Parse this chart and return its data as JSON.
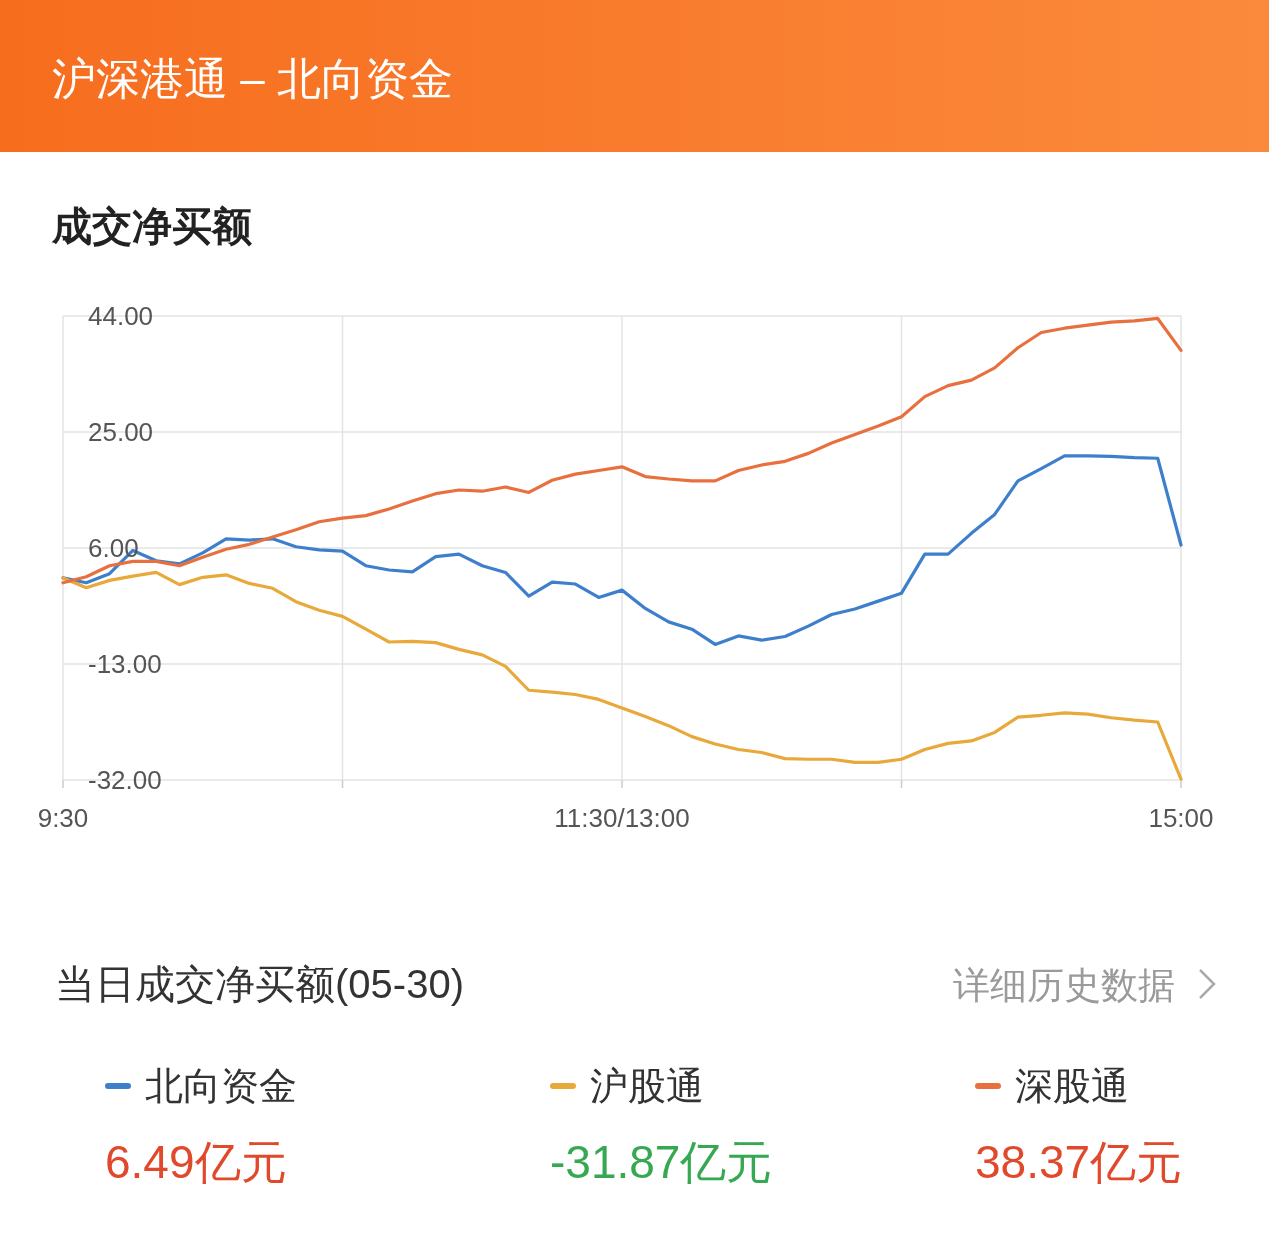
{
  "chart_data": {
    "type": "line",
    "title": "沪深港通 – 北向资金",
    "subtitle": "成交净买额",
    "categories": [
      "9:30",
      null,
      null,
      null,
      null,
      null,
      null,
      null,
      null,
      null,
      null,
      null,
      null,
      null,
      null,
      null,
      null,
      null,
      null,
      null,
      null,
      null,
      null,
      null,
      "11:30/13:00",
      null,
      null,
      null,
      null,
      null,
      null,
      null,
      null,
      null,
      null,
      null,
      null,
      null,
      null,
      null,
      null,
      null,
      null,
      null,
      null,
      null,
      null,
      null,
      "15:00"
    ],
    "ylim": [
      -32,
      44
    ],
    "yticks": [
      {
        "value": -32,
        "label": "-32.00"
      },
      {
        "value": -13,
        "label": "-13.00"
      },
      {
        "value": 6,
        "label": "6.00"
      },
      {
        "value": 25,
        "label": "25.00"
      },
      {
        "value": 44,
        "label": "44.00"
      }
    ],
    "grid": true,
    "legend": "bottom",
    "annotations": [
      "当日成交净买额(05-30)",
      "详细历史数据",
      "6.49亿元",
      "-31.87亿元",
      "38.37亿元"
    ],
    "series": [
      {
        "name": "北向资金",
        "color": "#3e7fcc",
        "values": [
          1.1,
          0.3,
          1.8,
          5.6,
          3.9,
          3.4,
          5.2,
          7.5,
          7.3,
          7.5,
          6.2,
          5.7,
          5.5,
          3.1,
          2.4,
          2.1,
          4.6,
          5.0,
          3.1,
          2.0,
          -1.9,
          0.4,
          0.1,
          -2.1,
          -0.9,
          -3.9,
          -6.1,
          -7.3,
          -9.8,
          -8.4,
          -9.1,
          -8.5,
          -6.8,
          -4.9,
          -4.0,
          -2.7,
          -1.4,
          5.0,
          5.0,
          8.4,
          11.5,
          17.0,
          19.0,
          21.1,
          21.1,
          21.0,
          20.8,
          20.7,
          6.49
        ]
      },
      {
        "name": "沪股通",
        "color": "#e8a93a",
        "values": [
          1.1,
          -0.5,
          0.7,
          1.4,
          2.0,
          0,
          1.2,
          1.6,
          0.2,
          -0.6,
          -2.8,
          -4.2,
          -5.2,
          -7.3,
          -9.4,
          -9.3,
          -9.5,
          -10.6,
          -11.5,
          -13.4,
          -17.3,
          -17.6,
          -18.0,
          -18.8,
          -20.2,
          -21.6,
          -23.1,
          -24.9,
          -26.1,
          -27.0,
          -27.5,
          -28.5,
          -28.6,
          -28.6,
          -29.1,
          -29.1,
          -28.6,
          -27.0,
          -26.0,
          -25.6,
          -24.2,
          -21.7,
          -21.4,
          -21.0,
          -21.2,
          -21.8,
          -22.2,
          -22.5,
          -31.87
        ]
      },
      {
        "name": "深股通",
        "color": "#e8703f",
        "values": [
          0.3,
          1.3,
          3.1,
          3.8,
          3.8,
          3.1,
          4.5,
          5.8,
          6.6,
          7.8,
          9.0,
          10.3,
          10.9,
          11.3,
          12.4,
          13.7,
          14.9,
          15.5,
          15.3,
          16.0,
          15.1,
          17.1,
          18.1,
          18.7,
          19.3,
          17.7,
          17.3,
          17.0,
          17.0,
          18.7,
          19.6,
          20.2,
          21.5,
          23.2,
          24.6,
          26.0,
          27.5,
          30.8,
          32.6,
          33.5,
          35.5,
          38.8,
          41.3,
          42.0,
          42.5,
          43.0,
          43.2,
          43.6,
          38.37
        ]
      }
    ]
  }
}
